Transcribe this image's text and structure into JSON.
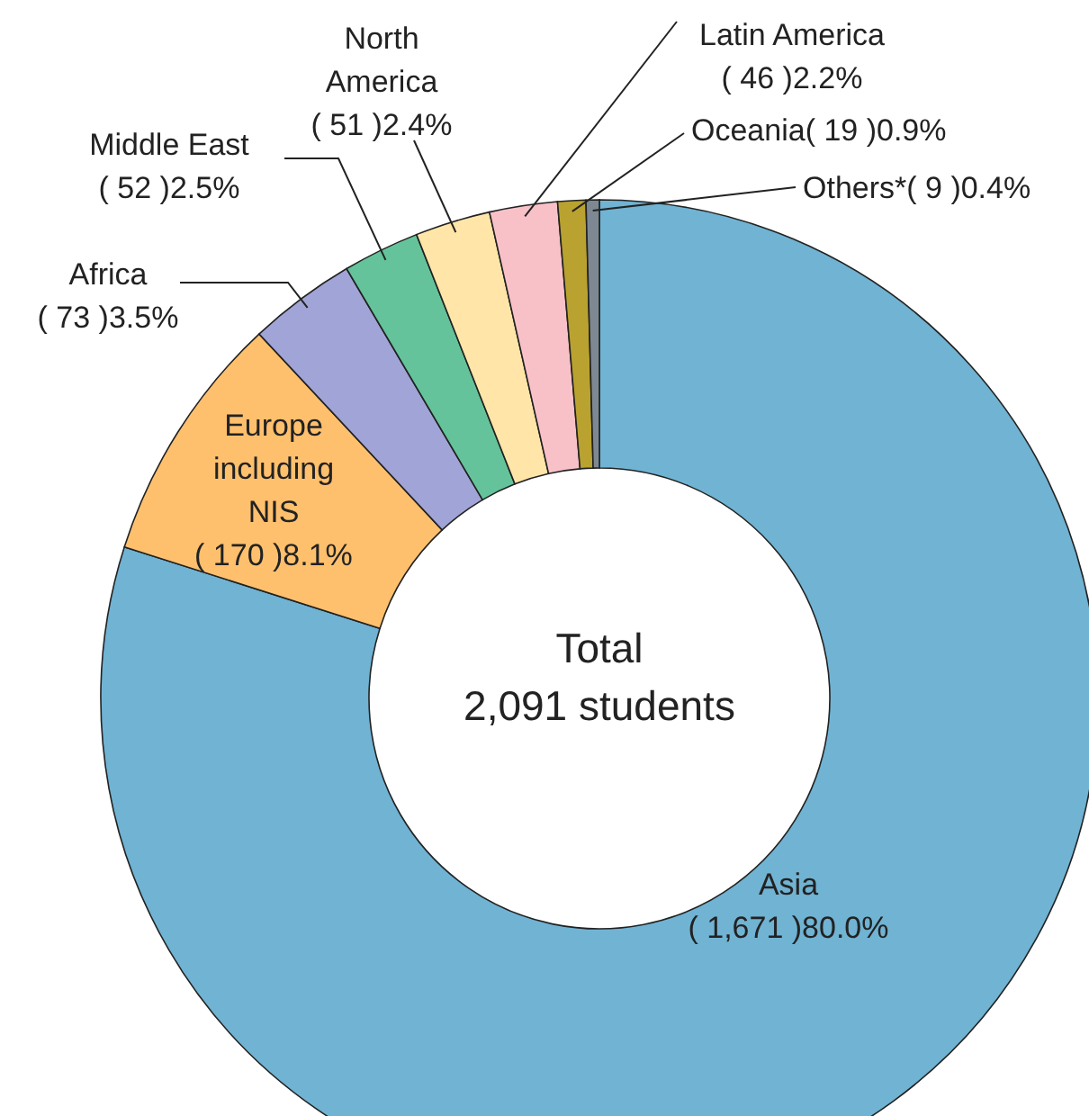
{
  "chart_data": {
    "type": "donut",
    "categories": [
      "Asia",
      "Europe\nincluding\nNIS",
      "Africa",
      "Middle East",
      "North\nAmerica",
      "Latin America",
      "Oceania",
      "Others*"
    ],
    "values": [
      1671,
      170,
      73,
      52,
      51,
      46,
      19,
      9
    ],
    "value_labels": [
      "( 1,671 )80.0%",
      "( 170 )8.1%",
      "( 73 )3.5%",
      "( 52 )2.5%",
      "( 51 )2.4%",
      "( 46 )2.2%",
      "( 19 )0.9%",
      "( 9 )0.4%"
    ],
    "colors": [
      "#70b3d3",
      "#ffc06e",
      "#a1a4d6",
      "#64c39a",
      "#ffe5a8",
      "#f8c1c8",
      "#b9a22f",
      "#7d8893"
    ],
    "annotations": [
      "Total",
      "2,091 students"
    ]
  }
}
